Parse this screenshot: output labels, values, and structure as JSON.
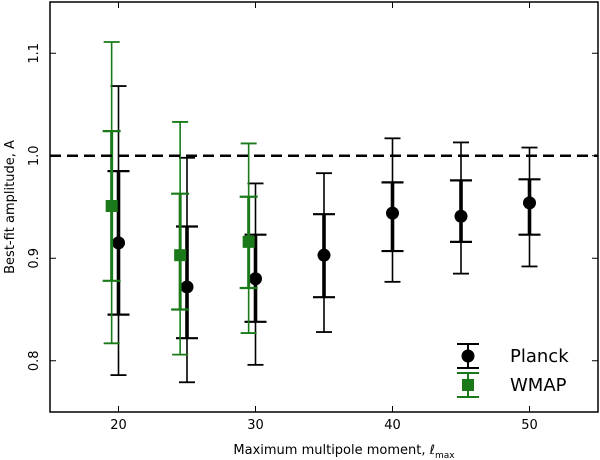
{
  "chart_data": {
    "type": "scatter",
    "xlabel": "Maximum multipole moment, ℓ",
    "xlabel_sub": "max",
    "ylabel": "Best-fit amplitude, A",
    "xlim": [
      15,
      55
    ],
    "ylim": [
      0.75,
      1.15
    ],
    "xticks": [
      "20",
      "30",
      "40",
      "50"
    ],
    "xtick_values": [
      20,
      30,
      40,
      50
    ],
    "yticks": [
      "0.8",
      "0.9",
      "1.0",
      "1.1"
    ],
    "ytick_values": [
      0.8,
      0.9,
      1.0,
      1.1
    ],
    "reference_line": 1.0,
    "legend_position": "lower-right",
    "series": [
      {
        "name": "Planck",
        "color": "#000000",
        "marker": "circle",
        "points": [
          {
            "x": 20,
            "y": 0.915,
            "inner": [
              0.845,
              0.985
            ],
            "outer": [
              0.786,
              1.068
            ]
          },
          {
            "x": 25,
            "y": 0.872,
            "inner": [
              0.822,
              0.931
            ],
            "outer": [
              0.779,
              0.998
            ]
          },
          {
            "x": 30,
            "y": 0.88,
            "inner": [
              0.838,
              0.923
            ],
            "outer": [
              0.796,
              0.973
            ]
          },
          {
            "x": 35,
            "y": 0.903,
            "inner": [
              0.862,
              0.943
            ],
            "outer": [
              0.828,
              0.983
            ]
          },
          {
            "x": 40,
            "y": 0.944,
            "inner": [
              0.907,
              0.974
            ],
            "outer": [
              0.877,
              1.017
            ]
          },
          {
            "x": 45,
            "y": 0.941,
            "inner": [
              0.916,
              0.976
            ],
            "outer": [
              0.885,
              1.013
            ]
          },
          {
            "x": 50,
            "y": 0.954,
            "inner": [
              0.923,
              0.977
            ],
            "outer": [
              0.892,
              1.008
            ]
          }
        ]
      },
      {
        "name": "WMAP",
        "color": "#1a7a1a",
        "marker": "square",
        "points": [
          {
            "x": 19.5,
            "y": 0.951,
            "inner": [
              0.878,
              1.024
            ],
            "outer": [
              0.817,
              1.111
            ]
          },
          {
            "x": 24.5,
            "y": 0.903,
            "inner": [
              0.85,
              0.963
            ],
            "outer": [
              0.806,
              1.033
            ]
          },
          {
            "x": 29.5,
            "y": 0.916,
            "inner": [
              0.871,
              0.96
            ],
            "outer": [
              0.827,
              1.012
            ]
          }
        ]
      }
    ]
  }
}
